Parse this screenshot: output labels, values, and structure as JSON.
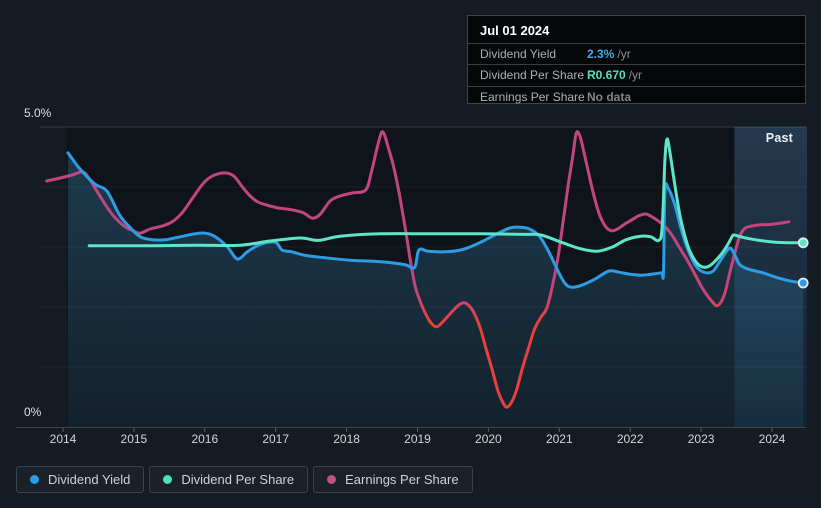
{
  "tooltip": {
    "date": "Jul 01 2024",
    "rows": [
      {
        "label": "Dividend Yield",
        "value": "2.3%",
        "unit": "/yr",
        "value_color": "#41ace4"
      },
      {
        "label": "Dividend Per Share",
        "value": "R0.670",
        "unit": "/yr",
        "value_color": "#55dfc4"
      },
      {
        "label": "Earnings Per Share",
        "value": "No data",
        "unit": "",
        "value_color": "#7e858c"
      }
    ]
  },
  "axis": {
    "y_top_label": "5.0%",
    "y_bottom_label": "0%",
    "x_labels": [
      "2014",
      "2015",
      "2016",
      "2017",
      "2018",
      "2019",
      "2020",
      "2021",
      "2022",
      "2023",
      "2024"
    ],
    "past_label": "Past"
  },
  "legend": {
    "items": [
      {
        "label": "Dividend Yield",
        "color": "#2b9de4"
      },
      {
        "label": "Dividend Per Share",
        "color": "#4ee0bd"
      },
      {
        "label": "Earnings Per Share",
        "color": "#c24d87"
      }
    ]
  },
  "colors": {
    "page_bg": "#141b22",
    "plot_bg": "#0e141a",
    "past_band_top": "#24394f",
    "past_band_bottom": "#13222f",
    "yield_line": "#2e9ce5",
    "dps_line": "#5ee4c6",
    "eps_line": "#c2457f",
    "eps_negative": "#e8403e",
    "area_fill": "#3e94c8",
    "grid": "#ffffff",
    "axis_line": "#3a434e"
  },
  "chart_data": {
    "type": "line",
    "title": "Dividend history with past region",
    "x_domain": [
      2013.7,
      2024.55
    ],
    "y_domain": [
      0,
      5
    ],
    "y_unit": "%",
    "grid": "horizontal",
    "legend_position": "bottom",
    "past_region_start": 2023.47,
    "series": [
      {
        "name": "Dividend Yield",
        "color": "#2e9ce5",
        "end_dot": true,
        "area": true,
        "points": [
          [
            2014.07,
            4.57
          ],
          [
            2014.24,
            4.3
          ],
          [
            2014.45,
            4.05
          ],
          [
            2014.62,
            3.93
          ],
          [
            2014.8,
            3.53
          ],
          [
            2014.95,
            3.32
          ],
          [
            2015.09,
            3.17
          ],
          [
            2015.26,
            3.12
          ],
          [
            2015.44,
            3.12
          ],
          [
            2015.65,
            3.17
          ],
          [
            2015.86,
            3.22
          ],
          [
            2016.01,
            3.23
          ],
          [
            2016.15,
            3.17
          ],
          [
            2016.32,
            3.0
          ],
          [
            2016.46,
            2.8
          ],
          [
            2016.6,
            2.92
          ],
          [
            2016.74,
            3.02
          ],
          [
            2016.9,
            3.08
          ],
          [
            2017.01,
            3.07
          ],
          [
            2017.09,
            2.95
          ],
          [
            2017.23,
            2.92
          ],
          [
            2017.42,
            2.86
          ],
          [
            2017.7,
            2.82
          ],
          [
            2018.05,
            2.78
          ],
          [
            2018.41,
            2.76
          ],
          [
            2018.69,
            2.73
          ],
          [
            2018.84,
            2.7
          ],
          [
            2018.96,
            2.66
          ],
          [
            2019.02,
            2.95
          ],
          [
            2019.15,
            2.93
          ],
          [
            2019.39,
            2.92
          ],
          [
            2019.61,
            2.95
          ],
          [
            2019.78,
            3.02
          ],
          [
            2019.96,
            3.12
          ],
          [
            2020.14,
            3.23
          ],
          [
            2020.31,
            3.32
          ],
          [
            2020.44,
            3.33
          ],
          [
            2020.58,
            3.3
          ],
          [
            2020.72,
            3.18
          ],
          [
            2020.86,
            2.9
          ],
          [
            2020.99,
            2.58
          ],
          [
            2021.09,
            2.38
          ],
          [
            2021.19,
            2.33
          ],
          [
            2021.33,
            2.37
          ],
          [
            2021.51,
            2.47
          ],
          [
            2021.7,
            2.6
          ],
          [
            2021.84,
            2.58
          ],
          [
            2021.98,
            2.55
          ],
          [
            2022.15,
            2.53
          ],
          [
            2022.32,
            2.55
          ],
          [
            2022.44,
            2.57
          ],
          [
            2022.47,
            2.58
          ],
          [
            2022.49,
            3.93
          ],
          [
            2022.54,
            3.97
          ],
          [
            2022.63,
            3.7
          ],
          [
            2022.73,
            3.25
          ],
          [
            2022.84,
            2.88
          ],
          [
            2022.95,
            2.65
          ],
          [
            2023.07,
            2.57
          ],
          [
            2023.17,
            2.6
          ],
          [
            2023.27,
            2.77
          ],
          [
            2023.36,
            2.93
          ],
          [
            2023.42,
            2.98
          ],
          [
            2023.49,
            2.83
          ],
          [
            2023.55,
            2.7
          ],
          [
            2023.67,
            2.63
          ],
          [
            2023.87,
            2.57
          ],
          [
            2024.1,
            2.48
          ],
          [
            2024.27,
            2.43
          ],
          [
            2024.44,
            2.4
          ]
        ]
      },
      {
        "name": "Dividend Per Share",
        "color": "#5ee4c6",
        "end_dot": true,
        "area": false,
        "points": [
          [
            2014.37,
            3.02
          ],
          [
            2014.8,
            3.02
          ],
          [
            2015.3,
            3.02
          ],
          [
            2015.9,
            3.03
          ],
          [
            2016.5,
            3.03
          ],
          [
            2016.92,
            3.1
          ],
          [
            2017.35,
            3.15
          ],
          [
            2017.6,
            3.11
          ],
          [
            2017.91,
            3.18
          ],
          [
            2018.48,
            3.22
          ],
          [
            2019.2,
            3.22
          ],
          [
            2019.89,
            3.22
          ],
          [
            2020.5,
            3.21
          ],
          [
            2020.74,
            3.2
          ],
          [
            2021.05,
            3.07
          ],
          [
            2021.3,
            2.97
          ],
          [
            2021.54,
            2.93
          ],
          [
            2021.75,
            3.0
          ],
          [
            2021.94,
            3.12
          ],
          [
            2022.15,
            3.18
          ],
          [
            2022.29,
            3.17
          ],
          [
            2022.4,
            3.11
          ],
          [
            2022.45,
            3.32
          ],
          [
            2022.49,
            4.45
          ],
          [
            2022.52,
            4.8
          ],
          [
            2022.56,
            4.58
          ],
          [
            2022.63,
            4.03
          ],
          [
            2022.71,
            3.48
          ],
          [
            2022.81,
            3.03
          ],
          [
            2022.91,
            2.78
          ],
          [
            2023.01,
            2.67
          ],
          [
            2023.11,
            2.68
          ],
          [
            2023.21,
            2.78
          ],
          [
            2023.31,
            2.92
          ],
          [
            2023.39,
            3.07
          ],
          [
            2023.44,
            3.18
          ],
          [
            2023.47,
            3.2
          ],
          [
            2023.56,
            3.17
          ],
          [
            2023.77,
            3.12
          ],
          [
            2024.05,
            3.08
          ],
          [
            2024.44,
            3.07
          ]
        ]
      },
      {
        "name": "Earnings Per Share",
        "color": "#c2457f",
        "negative_color": "#e8403e",
        "red_below": 2.0,
        "end_dot": false,
        "area": false,
        "points": [
          [
            2013.77,
            4.1
          ],
          [
            2013.96,
            4.15
          ],
          [
            2014.13,
            4.2
          ],
          [
            2014.28,
            4.25
          ],
          [
            2014.38,
            4.12
          ],
          [
            2014.52,
            3.85
          ],
          [
            2014.69,
            3.55
          ],
          [
            2014.86,
            3.35
          ],
          [
            2014.99,
            3.27
          ],
          [
            2015.09,
            3.23
          ],
          [
            2015.23,
            3.3
          ],
          [
            2015.4,
            3.35
          ],
          [
            2015.54,
            3.42
          ],
          [
            2015.68,
            3.57
          ],
          [
            2015.82,
            3.8
          ],
          [
            2015.95,
            4.02
          ],
          [
            2016.06,
            4.15
          ],
          [
            2016.19,
            4.22
          ],
          [
            2016.32,
            4.23
          ],
          [
            2016.42,
            4.17
          ],
          [
            2016.53,
            4.0
          ],
          [
            2016.64,
            3.85
          ],
          [
            2016.75,
            3.75
          ],
          [
            2016.87,
            3.7
          ],
          [
            2017.04,
            3.65
          ],
          [
            2017.23,
            3.62
          ],
          [
            2017.39,
            3.57
          ],
          [
            2017.52,
            3.48
          ],
          [
            2017.63,
            3.55
          ],
          [
            2017.77,
            3.77
          ],
          [
            2017.91,
            3.85
          ],
          [
            2018.08,
            3.9
          ],
          [
            2018.27,
            3.95
          ],
          [
            2018.35,
            4.25
          ],
          [
            2018.43,
            4.65
          ],
          [
            2018.49,
            4.9
          ],
          [
            2018.53,
            4.88
          ],
          [
            2018.59,
            4.65
          ],
          [
            2018.65,
            4.4
          ],
          [
            2018.72,
            4.03
          ],
          [
            2018.79,
            3.57
          ],
          [
            2018.86,
            3.07
          ],
          [
            2018.91,
            2.7
          ],
          [
            2018.97,
            2.33
          ],
          [
            2019.03,
            2.12
          ],
          [
            2019.1,
            1.92
          ],
          [
            2019.18,
            1.75
          ],
          [
            2019.27,
            1.67
          ],
          [
            2019.37,
            1.77
          ],
          [
            2019.47,
            1.9
          ],
          [
            2019.57,
            2.02
          ],
          [
            2019.65,
            2.07
          ],
          [
            2019.72,
            2.03
          ],
          [
            2019.79,
            1.92
          ],
          [
            2019.88,
            1.67
          ],
          [
            2019.96,
            1.33
          ],
          [
            2020.05,
            0.97
          ],
          [
            2020.13,
            0.62
          ],
          [
            2020.2,
            0.42
          ],
          [
            2020.26,
            0.33
          ],
          [
            2020.33,
            0.42
          ],
          [
            2020.4,
            0.63
          ],
          [
            2020.48,
            0.98
          ],
          [
            2020.57,
            1.33
          ],
          [
            2020.65,
            1.63
          ],
          [
            2020.74,
            1.83
          ],
          [
            2020.82,
            1.97
          ],
          [
            2020.89,
            2.28
          ],
          [
            2020.98,
            2.82
          ],
          [
            2021.06,
            3.48
          ],
          [
            2021.13,
            4.07
          ],
          [
            2021.19,
            4.52
          ],
          [
            2021.24,
            4.9
          ],
          [
            2021.29,
            4.85
          ],
          [
            2021.34,
            4.62
          ],
          [
            2021.41,
            4.25
          ],
          [
            2021.49,
            3.85
          ],
          [
            2021.57,
            3.53
          ],
          [
            2021.66,
            3.33
          ],
          [
            2021.74,
            3.27
          ],
          [
            2021.82,
            3.3
          ],
          [
            2021.92,
            3.38
          ],
          [
            2022.02,
            3.45
          ],
          [
            2022.12,
            3.52
          ],
          [
            2022.22,
            3.55
          ],
          [
            2022.31,
            3.5
          ],
          [
            2022.4,
            3.43
          ],
          [
            2022.5,
            3.33
          ],
          [
            2022.6,
            3.18
          ],
          [
            2022.7,
            2.98
          ],
          [
            2022.81,
            2.77
          ],
          [
            2022.91,
            2.55
          ],
          [
            2023.01,
            2.33
          ],
          [
            2023.1,
            2.17
          ],
          [
            2023.17,
            2.07
          ],
          [
            2023.22,
            2.02
          ],
          [
            2023.28,
            2.08
          ],
          [
            2023.34,
            2.25
          ],
          [
            2023.39,
            2.5
          ],
          [
            2023.45,
            2.78
          ],
          [
            2023.51,
            3.05
          ],
          [
            2023.56,
            3.22
          ],
          [
            2023.63,
            3.32
          ],
          [
            2023.72,
            3.35
          ],
          [
            2023.84,
            3.37
          ],
          [
            2024.01,
            3.38
          ],
          [
            2024.24,
            3.42
          ]
        ]
      }
    ]
  }
}
